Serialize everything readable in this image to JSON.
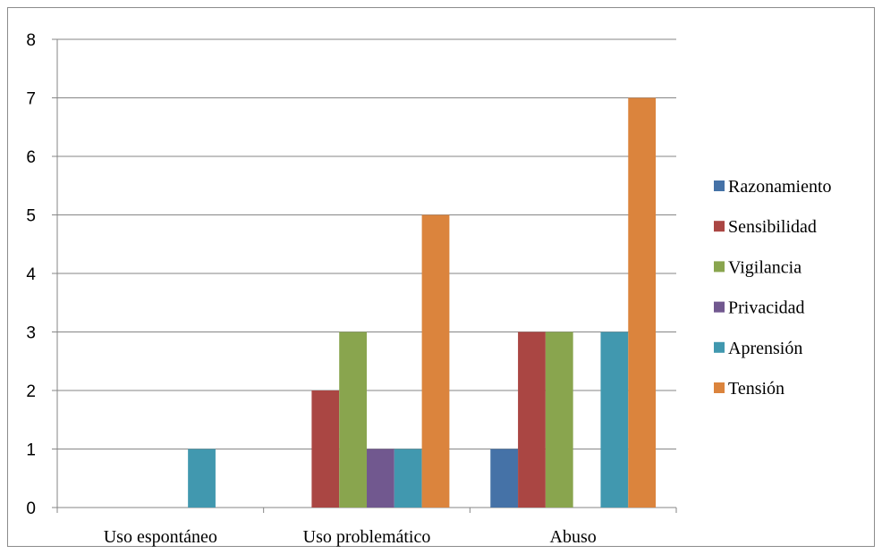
{
  "chart_data": {
    "type": "bar",
    "title": "",
    "xlabel": "",
    "ylabel": "",
    "ylim": [
      0,
      8
    ],
    "yticks": [
      0,
      1,
      2,
      3,
      4,
      5,
      6,
      7,
      8
    ],
    "grid": true,
    "legend_position": "right",
    "categories": [
      "Uso espontáneo",
      "Uso problemático",
      "Abuso"
    ],
    "series": [
      {
        "name": "Razonamiento",
        "color": "#4572A7",
        "values": [
          0,
          0,
          1
        ]
      },
      {
        "name": "Sensibilidad",
        "color": "#AA4643",
        "values": [
          0,
          2,
          3
        ]
      },
      {
        "name": "Vigilancia",
        "color": "#89A54E",
        "values": [
          0,
          3,
          3
        ]
      },
      {
        "name": "Privacidad",
        "color": "#71588F",
        "values": [
          0,
          1,
          0
        ]
      },
      {
        "name": "Aprensión",
        "color": "#4198AF",
        "values": [
          1,
          1,
          3
        ]
      },
      {
        "name": "Tensión",
        "color": "#DB843D",
        "values": [
          0,
          5,
          7
        ]
      }
    ]
  }
}
